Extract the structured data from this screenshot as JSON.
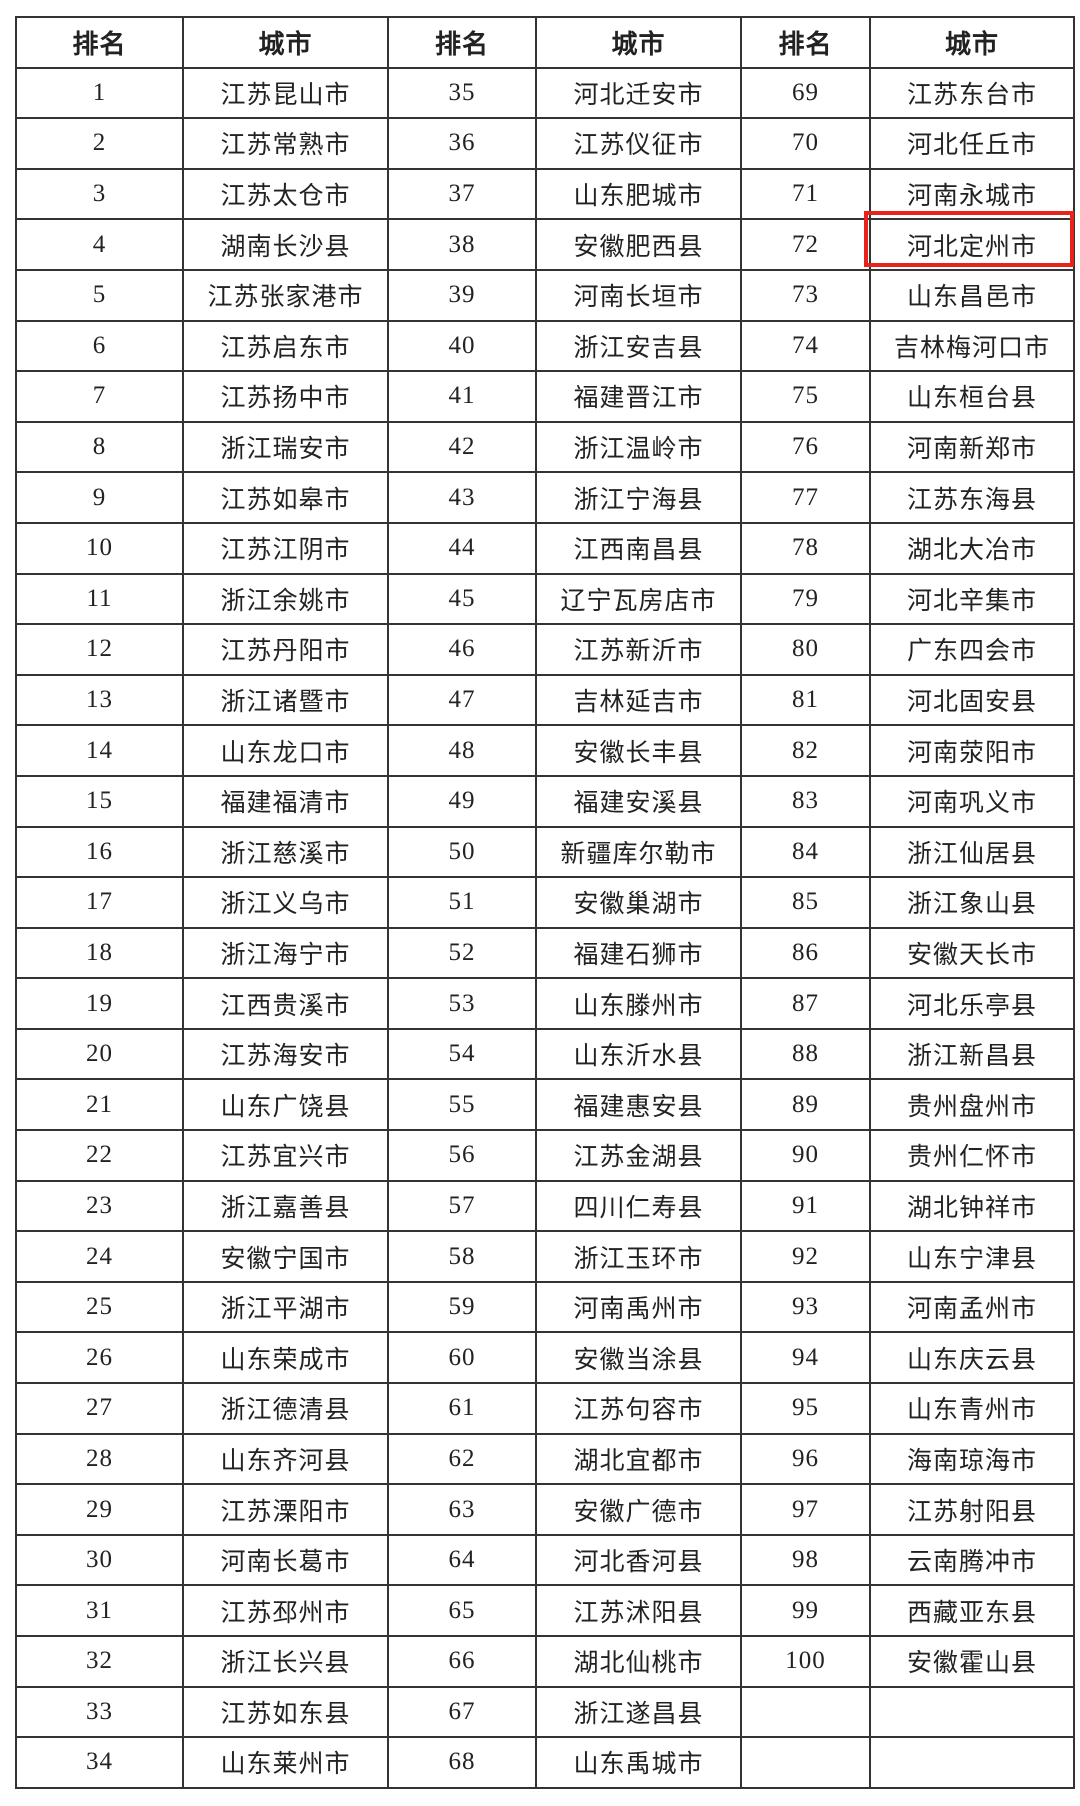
{
  "headers": [
    "排名",
    "城市",
    "排名",
    "城市",
    "排名",
    "城市"
  ],
  "highlight_color": "#e8231c",
  "highlighted": {
    "rank": "72",
    "city": "河北定州市"
  },
  "rows": [
    [
      "1",
      "江苏昆山市",
      "35",
      "河北迁安市",
      "69",
      "江苏东台市"
    ],
    [
      "2",
      "江苏常熟市",
      "36",
      "江苏仪征市",
      "70",
      "河北任丘市"
    ],
    [
      "3",
      "江苏太仓市",
      "37",
      "山东肥城市",
      "71",
      "河南永城市"
    ],
    [
      "4",
      "湖南长沙县",
      "38",
      "安徽肥西县",
      "72",
      "河北定州市"
    ],
    [
      "5",
      "江苏张家港市",
      "39",
      "河南长垣市",
      "73",
      "山东昌邑市"
    ],
    [
      "6",
      "江苏启东市",
      "40",
      "浙江安吉县",
      "74",
      "吉林梅河口市"
    ],
    [
      "7",
      "江苏扬中市",
      "41",
      "福建晋江市",
      "75",
      "山东桓台县"
    ],
    [
      "8",
      "浙江瑞安市",
      "42",
      "浙江温岭市",
      "76",
      "河南新郑市"
    ],
    [
      "9",
      "江苏如皋市",
      "43",
      "浙江宁海县",
      "77",
      "江苏东海县"
    ],
    [
      "10",
      "江苏江阴市",
      "44",
      "江西南昌县",
      "78",
      "湖北大冶市"
    ],
    [
      "11",
      "浙江余姚市",
      "45",
      "辽宁瓦房店市",
      "79",
      "河北辛集市"
    ],
    [
      "12",
      "江苏丹阳市",
      "46",
      "江苏新沂市",
      "80",
      "广东四会市"
    ],
    [
      "13",
      "浙江诸暨市",
      "47",
      "吉林延吉市",
      "81",
      "河北固安县"
    ],
    [
      "14",
      "山东龙口市",
      "48",
      "安徽长丰县",
      "82",
      "河南荥阳市"
    ],
    [
      "15",
      "福建福清市",
      "49",
      "福建安溪县",
      "83",
      "河南巩义市"
    ],
    [
      "16",
      "浙江慈溪市",
      "50",
      "新疆库尔勒市",
      "84",
      "浙江仙居县"
    ],
    [
      "17",
      "浙江义乌市",
      "51",
      "安徽巢湖市",
      "85",
      "浙江象山县"
    ],
    [
      "18",
      "浙江海宁市",
      "52",
      "福建石狮市",
      "86",
      "安徽天长市"
    ],
    [
      "19",
      "江西贵溪市",
      "53",
      "山东滕州市",
      "87",
      "河北乐亭县"
    ],
    [
      "20",
      "江苏海安市",
      "54",
      "山东沂水县",
      "88",
      "浙江新昌县"
    ],
    [
      "21",
      "山东广饶县",
      "55",
      "福建惠安县",
      "89",
      "贵州盘州市"
    ],
    [
      "22",
      "江苏宜兴市",
      "56",
      "江苏金湖县",
      "90",
      "贵州仁怀市"
    ],
    [
      "23",
      "浙江嘉善县",
      "57",
      "四川仁寿县",
      "91",
      "湖北钟祥市"
    ],
    [
      "24",
      "安徽宁国市",
      "58",
      "浙江玉环市",
      "92",
      "山东宁津县"
    ],
    [
      "25",
      "浙江平湖市",
      "59",
      "河南禹州市",
      "93",
      "河南孟州市"
    ],
    [
      "26",
      "山东荣成市",
      "60",
      "安徽当涂县",
      "94",
      "山东庆云县"
    ],
    [
      "27",
      "浙江德清县",
      "61",
      "江苏句容市",
      "95",
      "山东青州市"
    ],
    [
      "28",
      "山东齐河县",
      "62",
      "湖北宜都市",
      "96",
      "海南琼海市"
    ],
    [
      "29",
      "江苏溧阳市",
      "63",
      "安徽广德市",
      "97",
      "江苏射阳县"
    ],
    [
      "30",
      "河南长葛市",
      "64",
      "河北香河县",
      "98",
      "云南腾冲市"
    ],
    [
      "31",
      "江苏邳州市",
      "65",
      "江苏沭阳县",
      "99",
      "西藏亚东县"
    ],
    [
      "32",
      "浙江长兴县",
      "66",
      "湖北仙桃市",
      "100",
      "安徽霍山县"
    ],
    [
      "33",
      "江苏如东县",
      "67",
      "浙江遂昌县",
      "",
      ""
    ],
    [
      "34",
      "山东莱州市",
      "68",
      "山东禹城市",
      "",
      ""
    ]
  ]
}
